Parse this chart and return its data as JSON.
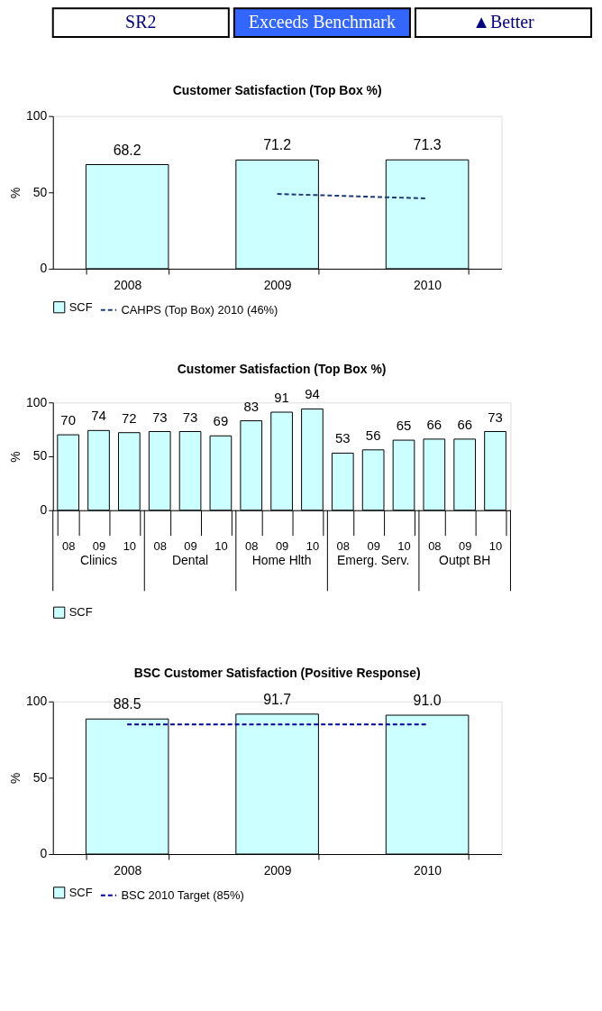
{
  "chart_data": [
    {
      "type": "other",
      "annotations": [
        "SR2",
        "Exceeds Benchmark",
        "▲Better"
      ]
    },
    {
      "type": "bar",
      "title": "Customer Satisfaction (Top Box %)",
      "ylabel": "%",
      "categories": [
        "2008",
        "2009",
        "2010"
      ],
      "series": [
        {
          "name": "SCF",
          "type": "bar",
          "color": "#ccffff",
          "values": [
            68.2,
            71.2,
            71.3
          ],
          "value_labels": [
            "68.2",
            "71.2",
            "71.3"
          ]
        },
        {
          "name": "CAHPS (Top Box) 2010 (46%)",
          "type": "line",
          "color": "#1f3a7a",
          "line_style": "dashed",
          "values": [
            null,
            49,
            46
          ]
        }
      ],
      "ylim": [
        0,
        100
      ],
      "yticks": [
        0,
        50,
        100
      ],
      "grid": false,
      "legend": "bottom"
    },
    {
      "type": "bar",
      "title": "Customer Satisfaction (Top Box %)",
      "ylabel": "%",
      "categories": [
        "08",
        "09",
        "10",
        "08",
        "09",
        "10",
        "08",
        "09",
        "10",
        "08",
        "09",
        "10",
        "08",
        "09",
        "10"
      ],
      "series": [
        {
          "name": "SCF",
          "type": "bar",
          "color": "#ccffff",
          "values": [
            70,
            74,
            72,
            73,
            73,
            69,
            83,
            91,
            94,
            53,
            56,
            65,
            66,
            66,
            73
          ]
        }
      ],
      "data_labels": true,
      "annotations": [
        "Clinics",
        "Dental",
        "Home Hlth",
        "Emerg. Serv.",
        "Outpt BH"
      ],
      "ylim": [
        0,
        100
      ],
      "yticks": [
        0,
        50,
        100
      ],
      "grid": false,
      "legend": "bottom"
    },
    {
      "type": "bar",
      "title": "BSC Customer Satisfaction (Positive Response)",
      "ylabel": "%",
      "categories": [
        "2008",
        "2009",
        "2010"
      ],
      "series": [
        {
          "name": "SCF",
          "type": "bar",
          "color": "#ccffff",
          "values": [
            88.5,
            91.7,
            91.0
          ],
          "value_labels": [
            "88.5",
            "91.7",
            "91.0"
          ]
        },
        {
          "name": "BSC 2010 Target (85%)",
          "type": "line",
          "color": "#000099",
          "line_style": "dashed",
          "values": [
            85,
            85,
            85
          ]
        }
      ],
      "ylim": [
        0,
        100
      ],
      "yticks": [
        0,
        50,
        100
      ],
      "grid": false,
      "legend": "bottom"
    }
  ]
}
